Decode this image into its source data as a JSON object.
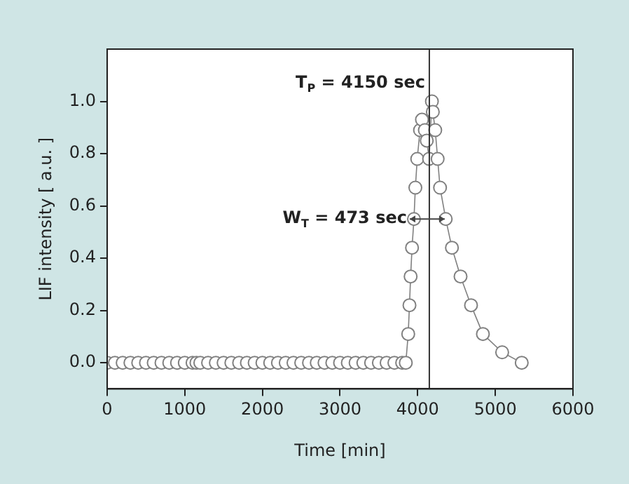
{
  "chart_data": {
    "type": "line",
    "xlabel": "Time [min]",
    "ylabel": "LIF intensity [ a.u. ]",
    "xlim": [
      0,
      6000
    ],
    "xticks": [
      0,
      1000,
      2000,
      3000,
      4000,
      5000,
      6000
    ],
    "ylim": [
      -0.1,
      1.2
    ],
    "yticks": [
      {
        "value": 0,
        "label": "0.0"
      },
      {
        "value": 0.2,
        "label": "0.2"
      },
      {
        "value": 0.4,
        "label": "0.4"
      },
      {
        "value": 0.6,
        "label": "0.6"
      },
      {
        "value": 0.8,
        "label": "0.8"
      },
      {
        "value": 1,
        "label": "1.0"
      }
    ],
    "grid": false,
    "legend": false,
    "marker": "circle",
    "line_style": "solid",
    "series": [
      {
        "color": "#808080",
        "x": [
          0,
          100,
          200,
          300,
          400,
          500,
          600,
          700,
          800,
          900,
          1000,
          1100,
          1150,
          1200,
          1300,
          1400,
          1500,
          1600,
          1700,
          1800,
          1900,
          2000,
          2100,
          2200,
          2300,
          2400,
          2500,
          2600,
          2700,
          2800,
          2900,
          3000,
          3100,
          3200,
          3300,
          3400,
          3500,
          3600,
          3700,
          3800,
          3847,
          3878,
          3894,
          3909,
          3927,
          3952,
          3970,
          3994,
          4030,
          4055,
          4092,
          4117,
          4147,
          4183,
          4195,
          4226,
          4257,
          4288,
          4361,
          4441,
          4552,
          4687,
          4840,
          5088,
          5340
        ],
        "values": [
          0,
          0,
          0,
          0,
          0,
          0,
          0,
          0,
          0,
          0,
          0,
          0,
          0,
          0,
          0,
          0,
          0,
          0,
          0,
          0,
          0,
          0,
          0,
          0,
          0,
          0,
          0,
          0,
          0,
          0,
          0,
          0,
          0,
          0,
          0,
          0,
          0,
          0,
          0,
          0,
          0,
          0.11,
          0.22,
          0.33,
          0.44,
          0.55,
          0.67,
          0.78,
          0.89,
          0.93,
          0.89,
          0.85,
          0.78,
          1.0,
          0.96,
          0.89,
          0.78,
          0.67,
          0.55,
          0.44,
          0.33,
          0.22,
          0.11,
          0.04,
          0
        ]
      }
    ],
    "ref_lines": [
      {
        "axis": "x",
        "value": 4150,
        "color": "#333333"
      }
    ],
    "annotations": [
      {
        "text": "T$_{P}$ = 4150 sec",
        "x": 4150,
        "y": 1.07
      },
      {
        "text": "W$_{T}$ = 473 sec",
        "x": 4150,
        "y": 0.55
      }
    ]
  }
}
